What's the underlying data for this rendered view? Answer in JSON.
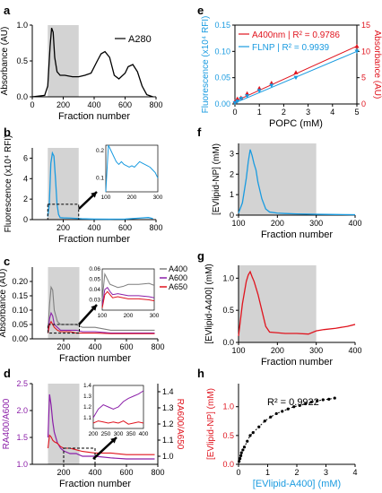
{
  "colors": {
    "black": "#000000",
    "blue": "#1a9be0",
    "red": "#e0141e",
    "purple": "#8b1fa8",
    "gray": "#7f7f7f",
    "shade": "#d3d3d3",
    "arrow": "#000000"
  },
  "panels": [
    {
      "letter": "a"
    },
    {
      "letter": "b"
    },
    {
      "letter": "c"
    },
    {
      "letter": "d"
    },
    {
      "letter": "e"
    },
    {
      "letter": "f"
    },
    {
      "letter": "g"
    },
    {
      "letter": "h"
    }
  ],
  "chart_data": [
    {
      "panel": "a",
      "type": "line",
      "xlabel": "Fraction number",
      "ylabel": "Absorbance (AU)",
      "xlim": [
        0,
        800
      ],
      "ylim": [
        0,
        1.0
      ],
      "xticks": [
        "0",
        "200",
        "400",
        "600",
        "800"
      ],
      "yticks": [
        "0.0",
        "0.5",
        "1.0"
      ],
      "shaded": [
        100,
        300
      ],
      "series": [
        {
          "name": "A280",
          "color": "black",
          "x": [
            0,
            80,
            100,
            115,
            125,
            135,
            145,
            160,
            180,
            210,
            260,
            300,
            340,
            380,
            420,
            445,
            470,
            500,
            530,
            560,
            600,
            620,
            650,
            680,
            710,
            740,
            780
          ],
          "y": [
            0,
            0.02,
            0.15,
            0.7,
            0.96,
            0.9,
            0.55,
            0.35,
            0.3,
            0.3,
            0.28,
            0.28,
            0.3,
            0.33,
            0.5,
            0.6,
            0.63,
            0.55,
            0.3,
            0.25,
            0.33,
            0.42,
            0.45,
            0.35,
            0.15,
            0.03,
            0.0
          ]
        }
      ],
      "legend": "top-right"
    },
    {
      "panel": "b",
      "type": "line",
      "xlabel": "Fraction number",
      "ylabel": "Fluorescence (x10⁴ RFI)",
      "xlim": [
        0,
        800
      ],
      "ylim": [
        0,
        7
      ],
      "xticks": [
        "200",
        "400",
        "600",
        "800"
      ],
      "yticks": [
        "0",
        "2",
        "4",
        "6"
      ],
      "shaded": [
        100,
        300
      ],
      "series": [
        {
          "color": "blue",
          "x": [
            100,
            110,
            120,
            130,
            140,
            150,
            160,
            170,
            180,
            200,
            240,
            280,
            320,
            400,
            500,
            600,
            700,
            750,
            780
          ],
          "y": [
            0.3,
            1.5,
            5.5,
            6.5,
            6.2,
            4.0,
            1.5,
            0.5,
            0.2,
            0.17,
            0.15,
            0.12,
            0.08,
            0.05,
            0.04,
            0.05,
            0.15,
            0.2,
            0.1
          ]
        }
      ],
      "inset": {
        "xlim": [
          100,
          300
        ],
        "ylim": [
          0.05,
          0.22
        ],
        "xticks": [
          "100",
          "200",
          "300"
        ],
        "yticks": [
          "0.1",
          "0.2"
        ],
        "x": [
          100,
          110,
          120,
          130,
          140,
          150,
          160,
          170,
          180,
          190,
          200,
          210,
          220,
          230,
          240,
          250,
          260,
          270,
          280,
          290,
          300
        ],
        "y": [
          0.05,
          0.22,
          0.2,
          0.18,
          0.16,
          0.15,
          0.16,
          0.15,
          0.145,
          0.14,
          0.145,
          0.14,
          0.15,
          0.16,
          0.155,
          0.15,
          0.145,
          0.14,
          0.13,
          0.12,
          0.1
        ]
      }
    },
    {
      "panel": "c",
      "type": "line",
      "xlabel": "Fraction number",
      "ylabel": "Absorbance (AU)",
      "xlim": [
        0,
        800
      ],
      "ylim": [
        0,
        0.25
      ],
      "xticks": [
        "200",
        "400",
        "600",
        "800"
      ],
      "yticks": [
        "0.00",
        "0.05",
        "0.10",
        "0.15",
        "0.20"
      ],
      "shaded": [
        100,
        300
      ],
      "series": [
        {
          "name": "A400",
          "color": "gray",
          "x": [
            100,
            110,
            120,
            130,
            140,
            160,
            180,
            200,
            240,
            280,
            320,
            400,
            500,
            600,
            700,
            780
          ],
          "y": [
            0.03,
            0.12,
            0.18,
            0.17,
            0.1,
            0.06,
            0.05,
            0.05,
            0.05,
            0.05,
            0.04,
            0.04,
            0.03,
            0.03,
            0.03,
            0.03
          ]
        },
        {
          "name": "A600",
          "color": "purple",
          "x": [
            100,
            110,
            120,
            130,
            140,
            160,
            180,
            200,
            240,
            280,
            320,
            400,
            500,
            600,
            700,
            780
          ],
          "y": [
            0.02,
            0.07,
            0.09,
            0.08,
            0.05,
            0.04,
            0.03,
            0.03,
            0.03,
            0.03,
            0.025,
            0.025,
            0.02,
            0.02,
            0.02,
            0.02
          ]
        },
        {
          "name": "A650",
          "color": "red",
          "x": [
            100,
            110,
            120,
            130,
            140,
            160,
            180,
            200,
            240,
            280,
            320,
            400,
            500,
            600,
            700,
            780
          ],
          "y": [
            0.02,
            0.05,
            0.06,
            0.05,
            0.04,
            0.03,
            0.025,
            0.025,
            0.025,
            0.02,
            0.02,
            0.02,
            0.018,
            0.018,
            0.018,
            0.018
          ]
        }
      ],
      "legend": "right",
      "inset": {
        "xlim": [
          100,
          300
        ],
        "ylim": [
          0.02,
          0.06
        ],
        "xticks": [
          "100",
          "200",
          "300"
        ],
        "yticks": [
          "0.03",
          "0.04",
          "0.05",
          "0.06"
        ],
        "series": [
          {
            "color": "gray",
            "x": [
              100,
              110,
              120,
              130,
              140,
              160,
              180,
              200,
              240,
              280,
              300
            ],
            "y": [
              0.03,
              0.055,
              0.05,
              0.045,
              0.044,
              0.042,
              0.043,
              0.045,
              0.045,
              0.046,
              0.044
            ]
          },
          {
            "color": "purple",
            "x": [
              100,
              110,
              120,
              130,
              140,
              160,
              180,
              200,
              240,
              280,
              300
            ],
            "y": [
              0.025,
              0.04,
              0.042,
              0.038,
              0.035,
              0.036,
              0.035,
              0.034,
              0.034,
              0.033,
              0.032
            ]
          },
          {
            "color": "red",
            "x": [
              100,
              110,
              120,
              130,
              140,
              160,
              180,
              200,
              240,
              280,
              300
            ],
            "y": [
              0.022,
              0.035,
              0.038,
              0.035,
              0.032,
              0.033,
              0.032,
              0.031,
              0.031,
              0.03,
              0.029
            ]
          }
        ]
      }
    },
    {
      "panel": "d",
      "type": "line",
      "xlabel": "Fraction number",
      "ylabel": "RA400/A600",
      "ylabel2": "RA600/A650",
      "xlim": [
        0,
        800
      ],
      "ylim": [
        1.0,
        2.5
      ],
      "ylim2": [
        0.95,
        1.45
      ],
      "xticks": [
        "200",
        "400",
        "600",
        "800"
      ],
      "yticks": [
        "1.0",
        "1.5",
        "2.0",
        "2.5"
      ],
      "yticks2": [
        "1.0",
        "1.1",
        "1.2",
        "1.3",
        "1.4"
      ],
      "shaded": [
        100,
        300
      ],
      "series": [
        {
          "color": "purple",
          "axis": "left",
          "x": [
            100,
            110,
            120,
            130,
            140,
            160,
            180,
            200,
            240,
            280,
            320,
            400,
            500,
            600,
            700,
            780
          ],
          "y": [
            1.5,
            2.3,
            2.1,
            1.8,
            1.6,
            1.4,
            1.3,
            1.25,
            1.2,
            1.2,
            1.15,
            1.15,
            1.12,
            1.1,
            1.1,
            1.1
          ]
        },
        {
          "color": "red",
          "axis": "right",
          "x": [
            100,
            110,
            120,
            130,
            140,
            160,
            180,
            200,
            240,
            280,
            320,
            400,
            500,
            600,
            700,
            780
          ],
          "y": [
            1.05,
            1.13,
            1.12,
            1.1,
            1.09,
            1.08,
            1.06,
            1.05,
            1.05,
            1.04,
            1.03,
            1.02,
            1.02,
            1.01,
            1.01,
            1.01
          ]
        }
      ],
      "inset": {
        "xlim": [
          200,
          400
        ],
        "ylim": [
          1.0,
          1.4
        ],
        "xticks": [
          "200",
          "250",
          "300",
          "350",
          "400"
        ],
        "yticks": [
          "1.1",
          "1.2",
          "1.3",
          "1.4"
        ],
        "series": [
          {
            "color": "purple",
            "x": [
              200,
              220,
              240,
              260,
              280,
              300,
              320,
              340,
              360,
              380,
              400
            ],
            "y": [
              1.1,
              1.18,
              1.22,
              1.2,
              1.18,
              1.2,
              1.25,
              1.28,
              1.3,
              1.32,
              1.35
            ]
          },
          {
            "color": "red",
            "x": [
              200,
              220,
              240,
              260,
              280,
              300,
              320,
              340,
              360,
              380,
              400
            ],
            "y": [
              1.05,
              1.07,
              1.06,
              1.05,
              1.06,
              1.05,
              1.07,
              1.04,
              1.05,
              1.06,
              1.05
            ]
          }
        ]
      }
    },
    {
      "panel": "e",
      "type": "scatter",
      "xlabel": "POPC (mM)",
      "ylabel": "Fluorescence (x10⁴ RFI)",
      "ylabel2": "Absorbance (AU)",
      "xlim": [
        0,
        5
      ],
      "ylim": [
        0,
        0.15
      ],
      "ylim2": [
        0,
        15
      ],
      "xticks": [
        "0",
        "1",
        "2",
        "3",
        "4",
        "5"
      ],
      "yticks": [
        "0.00",
        "0.05",
        "0.10",
        "0.15"
      ],
      "yticks2": [
        "0",
        "5",
        "10",
        "15"
      ],
      "series": [
        {
          "name": "A400nm | R² = 0.9786",
          "color": "red",
          "axis": "right",
          "x": [
            0,
            0.1,
            0.25,
            0.5,
            1,
            1.5,
            2.5,
            5
          ],
          "y": [
            0.5,
            1,
            1.2,
            2,
            3,
            4,
            6,
            11
          ],
          "fit": [
            0.5,
            11
          ]
        },
        {
          "name": "FLNP | R² = 0.9939",
          "color": "blue",
          "axis": "left",
          "x": [
            0,
            0.1,
            0.25,
            0.5,
            1,
            1.5,
            2.5,
            5
          ],
          "y": [
            0.002,
            0.005,
            0.01,
            0.015,
            0.025,
            0.035,
            0.05,
            0.1
          ],
          "fit": [
            0.002,
            0.1
          ]
        }
      ],
      "legend": "top-left"
    },
    {
      "panel": "f",
      "type": "line",
      "xlabel": "Fraction number",
      "ylabel": "[EVlipid-NP] (mM)",
      "xlim": [
        100,
        400
      ],
      "ylim": [
        0,
        3.5
      ],
      "xticks": [
        "100",
        "200",
        "300",
        "400"
      ],
      "yticks": [
        "0",
        "1",
        "2",
        "3"
      ],
      "shaded": [
        100,
        300
      ],
      "series": [
        {
          "color": "blue",
          "x": [
            100,
            110,
            120,
            125,
            130,
            135,
            140,
            145,
            150,
            160,
            170,
            180,
            200,
            220,
            250,
            300,
            350,
            400
          ],
          "y": [
            0.1,
            0.6,
            1.8,
            2.6,
            3.2,
            2.9,
            2.5,
            2.2,
            1.6,
            0.8,
            0.3,
            0.15,
            0.1,
            0.08,
            0.06,
            0.04,
            0.03,
            0.02
          ]
        }
      ]
    },
    {
      "panel": "g",
      "type": "line",
      "xlabel": "Fraction number",
      "ylabel": "[EVlipid-A400] (mM)",
      "xlim": [
        100,
        400
      ],
      "ylim": [
        0,
        1.2
      ],
      "xticks": [
        "100",
        "200",
        "300",
        "400"
      ],
      "yticks": [
        "0.0",
        "0.5",
        "1.0"
      ],
      "shaded": [
        100,
        300
      ],
      "series": [
        {
          "color": "red",
          "x": [
            100,
            110,
            120,
            125,
            130,
            135,
            140,
            150,
            160,
            170,
            180,
            200,
            220,
            250,
            280,
            300,
            320,
            350,
            380,
            400
          ],
          "y": [
            0.1,
            0.6,
            0.95,
            1.05,
            1.1,
            1.02,
            0.95,
            0.75,
            0.5,
            0.25,
            0.16,
            0.15,
            0.14,
            0.14,
            0.13,
            0.18,
            0.2,
            0.22,
            0.25,
            0.28
          ]
        }
      ]
    },
    {
      "panel": "h",
      "type": "scatter",
      "xlabel": "[EVlipid-A400] (mM)",
      "ylabel": "[EVlipid-NP] (mM)",
      "xlim": [
        0,
        4
      ],
      "ylim": [
        0,
        1.4
      ],
      "xticks": [
        "0",
        "1",
        "2",
        "3",
        "4"
      ],
      "yticks": [
        "0.0",
        "0.5",
        "1.0"
      ],
      "annotation": "R² = 0.9922",
      "series": [
        {
          "color": "black",
          "x": [
            0.02,
            0.05,
            0.08,
            0.1,
            0.15,
            0.2,
            0.3,
            0.4,
            0.5,
            0.7,
            0.9,
            1.1,
            1.3,
            1.5,
            1.7,
            1.9,
            2.1,
            2.3,
            2.5,
            2.7,
            2.9,
            3.1,
            3.3
          ],
          "y": [
            0.05,
            0.1,
            0.15,
            0.2,
            0.25,
            0.3,
            0.4,
            0.5,
            0.55,
            0.65,
            0.75,
            0.82,
            0.88,
            0.92,
            0.96,
            1.0,
            1.02,
            1.05,
            1.08,
            1.1,
            1.12,
            1.13,
            1.15
          ]
        }
      ]
    }
  ]
}
